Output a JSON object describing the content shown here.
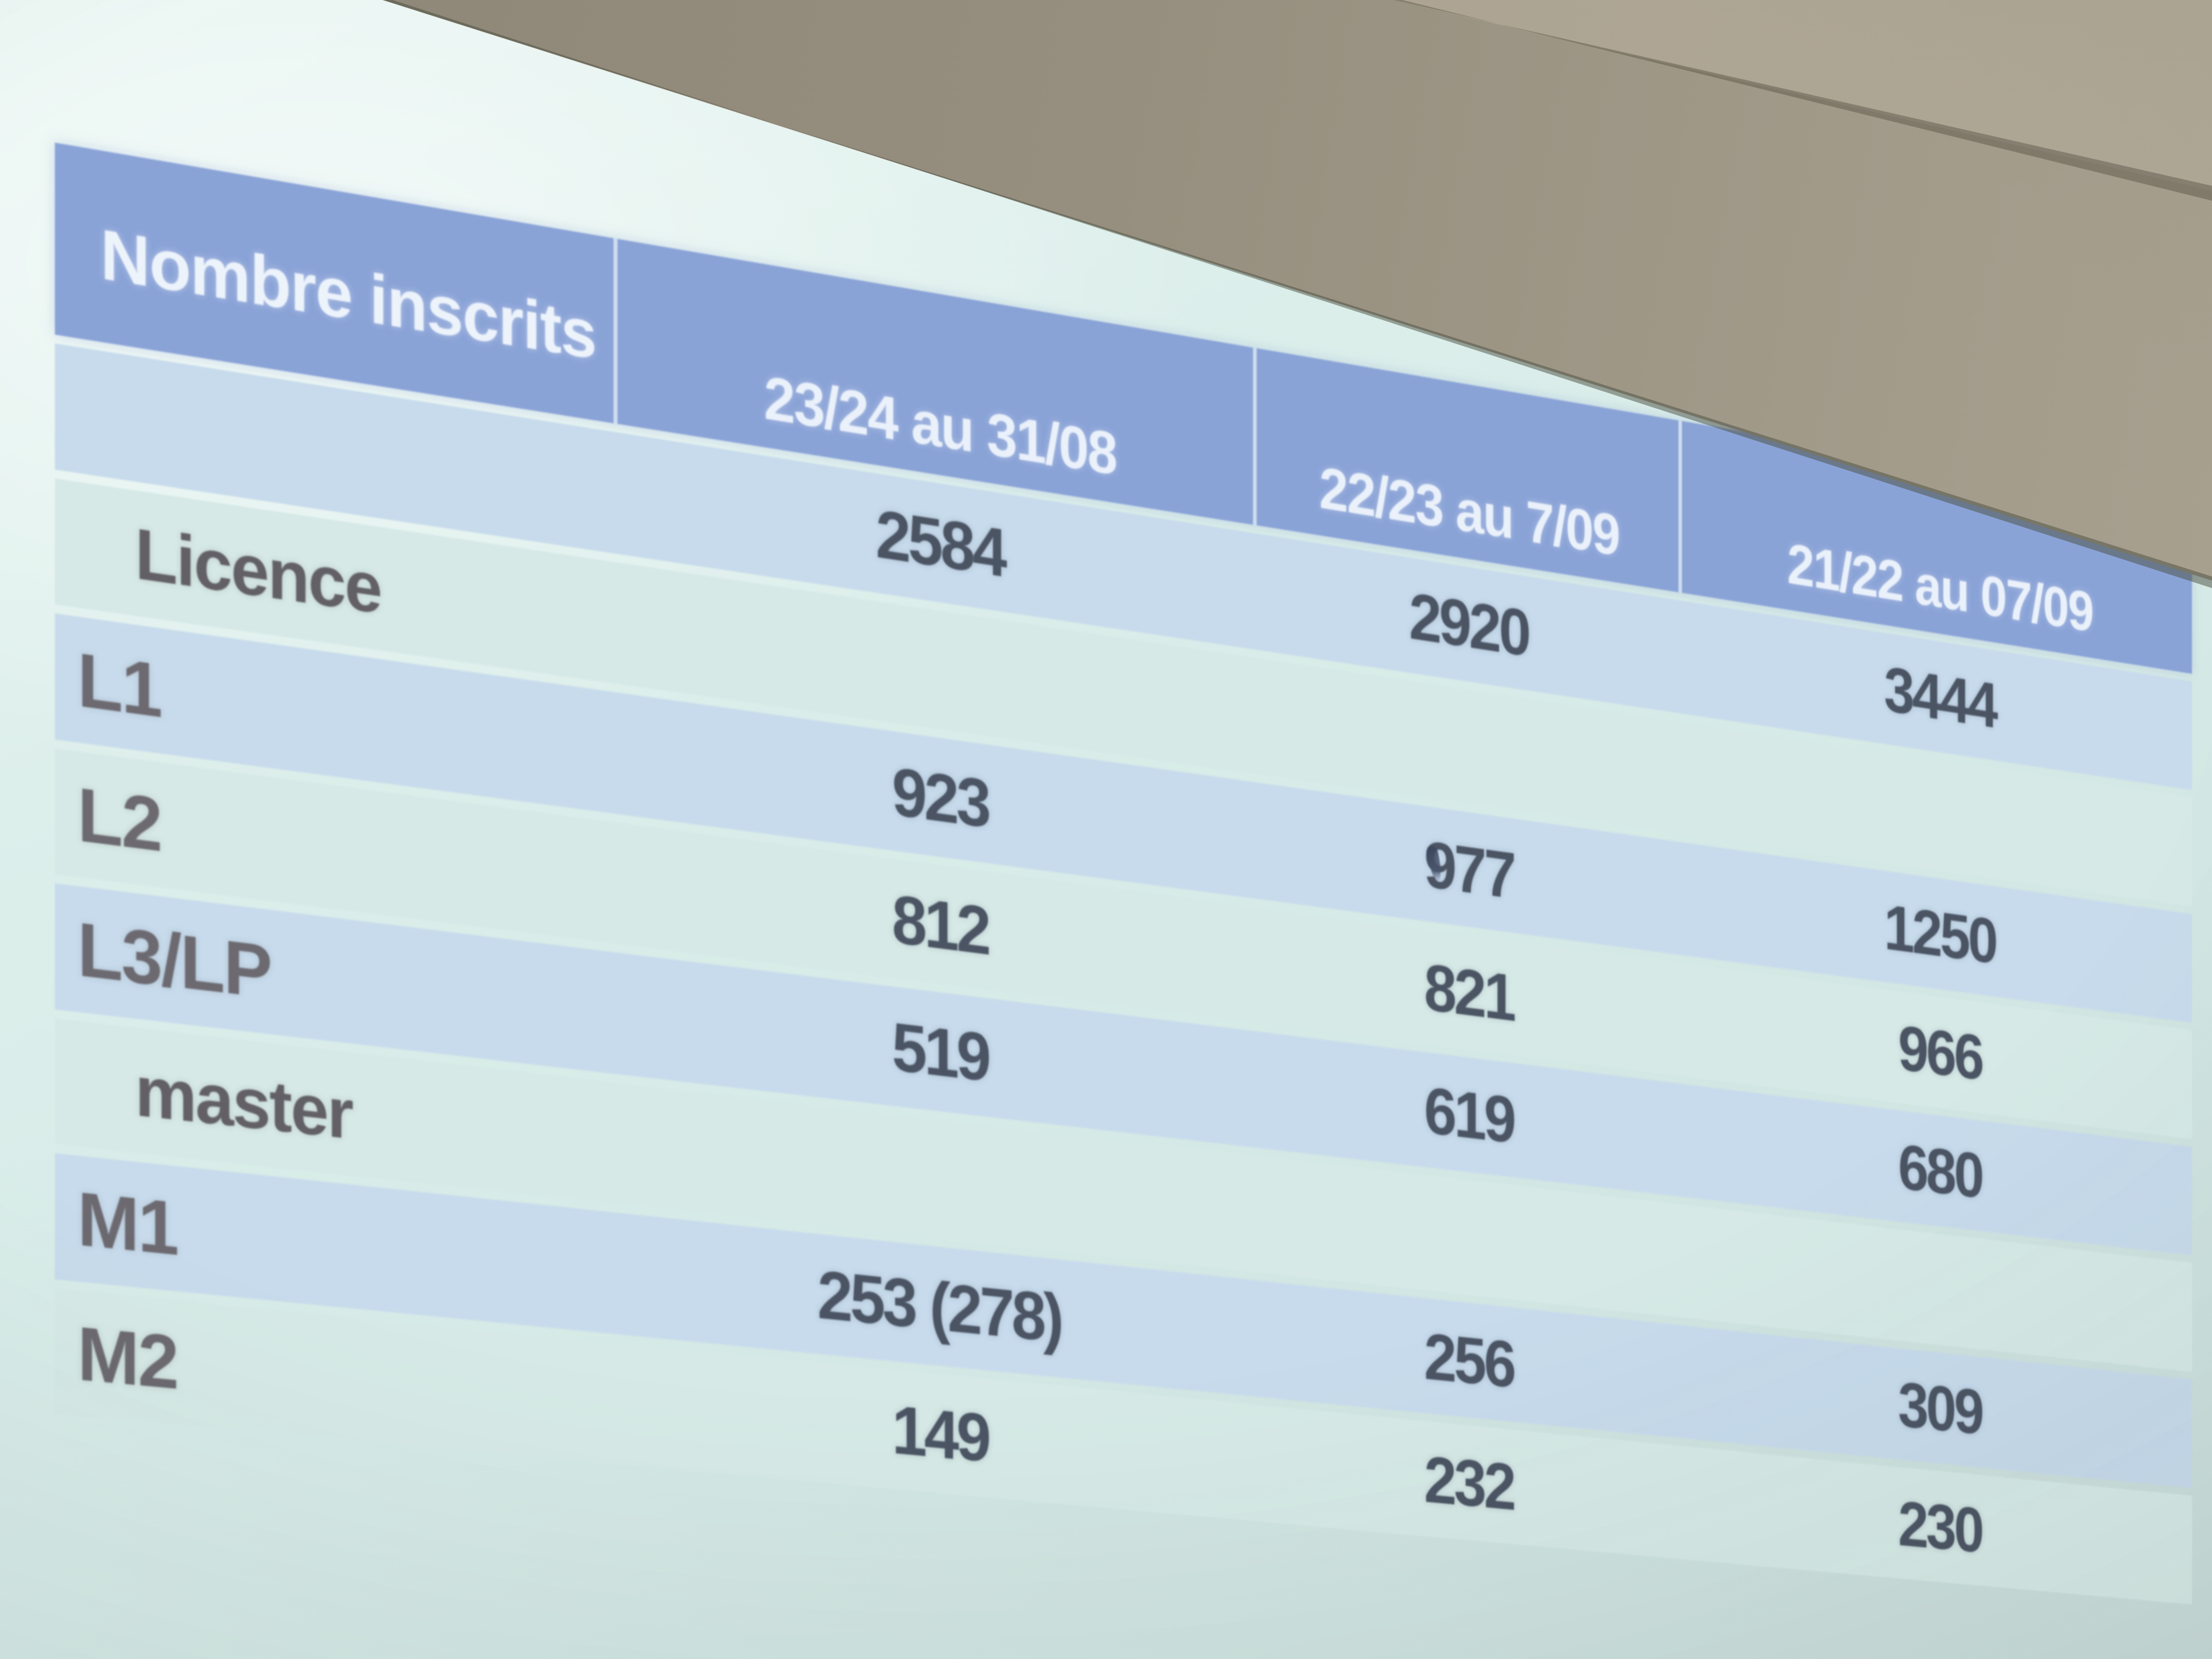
{
  "table": {
    "title": "Nombre inscrits",
    "columns": [
      "23/24 au 31/08",
      "22/23 au 7/09",
      "21/22 au 07/09"
    ],
    "rows": [
      {
        "label": "",
        "values": [
          "2584",
          "2920",
          "3444"
        ]
      },
      {
        "label": "Licence",
        "values": [
          "",
          "",
          ""
        ]
      },
      {
        "label": "L1",
        "values": [
          "923",
          "977",
          "1250"
        ]
      },
      {
        "label": "L2",
        "values": [
          "812",
          "821",
          "966"
        ]
      },
      {
        "label": "L3/LP",
        "values": [
          "519",
          "619",
          "680"
        ]
      },
      {
        "label": "master",
        "values": [
          "",
          "",
          ""
        ]
      },
      {
        "label": "M1",
        "values": [
          "253 (278)",
          "256",
          "309"
        ]
      },
      {
        "label": "M2",
        "values": [
          "149",
          "232",
          "230"
        ]
      }
    ]
  },
  "colors": {
    "header_blue": "#8aa3d7",
    "row_band_blue": "#c7dbec",
    "row_band_light": "#d6e9e6",
    "screen_background": "#d8ebe7",
    "wall": "#8e8677",
    "header_text": "#eaf1fa",
    "value_text": "#4b5463",
    "label_text": "#6c6a70"
  }
}
